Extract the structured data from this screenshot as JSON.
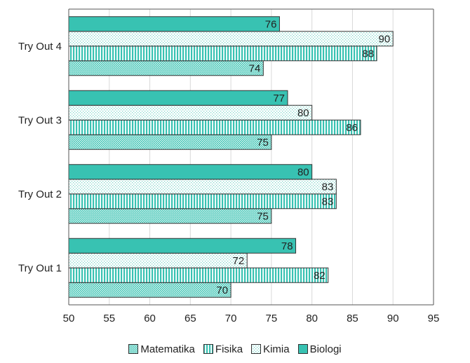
{
  "chart_data": {
    "type": "bar",
    "orientation": "horizontal",
    "categories": [
      "Try Out 1",
      "Try Out 2",
      "Try Out 3",
      "Try Out 4"
    ],
    "series": [
      {
        "name": "Matematika",
        "values": [
          70,
          75,
          75,
          74
        ],
        "color": "#38C2B2",
        "pattern": "dots"
      },
      {
        "name": "Fisika",
        "values": [
          82,
          83,
          86,
          88
        ],
        "color": "#38C2B2",
        "pattern": "vertical-stripes"
      },
      {
        "name": "Kimia",
        "values": [
          72,
          83,
          80,
          90
        ],
        "color": "#38C2B2",
        "pattern": "light-dots"
      },
      {
        "name": "Biologi",
        "values": [
          78,
          80,
          77,
          76
        ],
        "color": "#38C2B2",
        "pattern": "solid"
      }
    ],
    "xlim": [
      50,
      95
    ],
    "xticks": [
      50,
      55,
      60,
      65,
      70,
      75,
      80,
      85,
      90,
      95
    ],
    "grid": "vertical",
    "legend": "bottom",
    "data_labels": true
  }
}
